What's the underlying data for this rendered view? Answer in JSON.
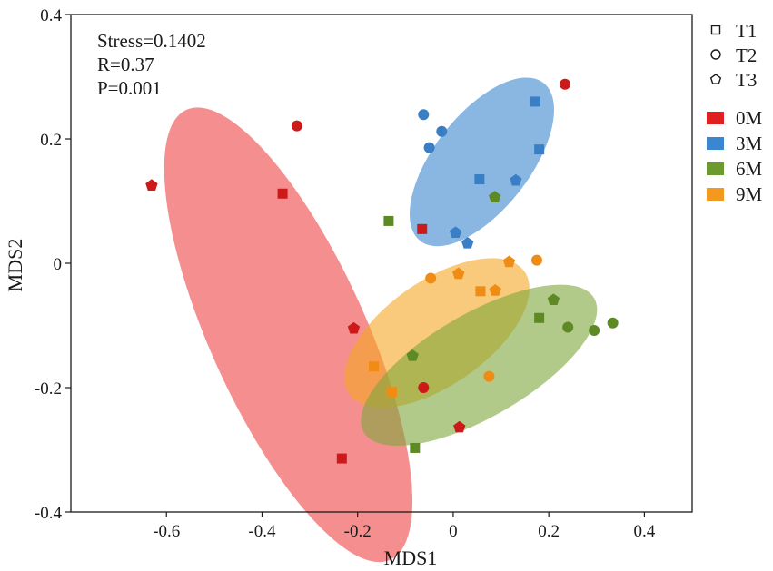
{
  "chart_data": {
    "type": "scatter",
    "title": "",
    "xlabel": "MDS1",
    "ylabel": "MDS2",
    "xlim": [
      -0.8,
      0.5
    ],
    "ylim": [
      -0.4,
      0.4
    ],
    "x_ticks": [
      -0.6,
      -0.4,
      -0.2,
      0,
      0.2,
      0.4
    ],
    "x_tick_labels": [
      "-0.6",
      "-0.4",
      "-0.2",
      "0",
      "0.2",
      "0.4"
    ],
    "y_ticks": [
      0.4,
      0.2,
      0,
      -0.2,
      -0.4
    ],
    "y_tick_labels": [
      "0.4",
      "0.2",
      "0",
      "-0.2",
      "-0.4"
    ],
    "grid": false,
    "annotations": [
      "Stress=0.1402",
      "R=0.37",
      "P=0.001"
    ],
    "legend_position": "right",
    "shape_legend": [
      {
        "label": "T1",
        "shape": "square"
      },
      {
        "label": "T2",
        "shape": "circle"
      },
      {
        "label": "T3",
        "shape": "pentagon"
      }
    ],
    "group_legend": [
      {
        "label": "0M",
        "color": "#e02020"
      },
      {
        "label": "3M",
        "color": "#3a87cf"
      },
      {
        "label": "6M",
        "color": "#6b9a2e"
      },
      {
        "label": "9M",
        "color": "#f39a1e"
      }
    ],
    "ellipses": [
      {
        "group": "0M",
        "fill": "#ef4444",
        "center": [
          -0.345,
          -0.115
        ],
        "semi_major": 0.42,
        "semi_minor": 0.15,
        "angle_deg": -59.5
      },
      {
        "group": "3M",
        "fill": "#3a87cf",
        "center": [
          0.06,
          0.163
        ],
        "semi_major": 0.181,
        "semi_minor": 0.086,
        "angle_deg": 44.6
      },
      {
        "group": "9M",
        "fill": "#f5a623",
        "center": [
          -0.034,
          -0.112
        ],
        "semi_major": 0.208,
        "semi_minor": 0.088,
        "angle_deg": 28.3
      },
      {
        "group": "6M",
        "fill": "#7ea63b",
        "center": [
          0.054,
          -0.164
        ],
        "semi_major": 0.264,
        "semi_minor": 0.086,
        "angle_deg": 24.1
      }
    ],
    "series": [
      {
        "name": "0M",
        "color": "#cc1a1a",
        "points": [
          {
            "x": 0.234,
            "y": 0.288,
            "shape": "circle"
          },
          {
            "x": -0.327,
            "y": 0.221,
            "shape": "circle"
          },
          {
            "x": -0.631,
            "y": 0.126,
            "shape": "pentagon"
          },
          {
            "x": -0.357,
            "y": 0.112,
            "shape": "square"
          },
          {
            "x": -0.065,
            "y": 0.055,
            "shape": "square"
          },
          {
            "x": -0.208,
            "y": -0.104,
            "shape": "pentagon"
          },
          {
            "x": -0.062,
            "y": -0.2,
            "shape": "circle"
          },
          {
            "x": 0.013,
            "y": -0.263,
            "shape": "pentagon"
          },
          {
            "x": -0.233,
            "y": -0.314,
            "shape": "square"
          }
        ]
      },
      {
        "name": "3M",
        "color": "#3a7fc6",
        "points": [
          {
            "x": -0.062,
            "y": 0.239,
            "shape": "circle"
          },
          {
            "x": 0.172,
            "y": 0.26,
            "shape": "square"
          },
          {
            "x": -0.024,
            "y": 0.212,
            "shape": "circle"
          },
          {
            "x": -0.05,
            "y": 0.186,
            "shape": "circle"
          },
          {
            "x": 0.18,
            "y": 0.183,
            "shape": "square"
          },
          {
            "x": 0.055,
            "y": 0.135,
            "shape": "square"
          },
          {
            "x": 0.131,
            "y": 0.134,
            "shape": "pentagon"
          },
          {
            "x": 0.005,
            "y": 0.05,
            "shape": "pentagon"
          },
          {
            "x": 0.03,
            "y": 0.033,
            "shape": "pentagon"
          }
        ]
      },
      {
        "name": "6M",
        "color": "#5d8a25",
        "points": [
          {
            "x": 0.087,
            "y": 0.107,
            "shape": "pentagon"
          },
          {
            "x": -0.135,
            "y": 0.068,
            "shape": "square"
          },
          {
            "x": 0.21,
            "y": -0.058,
            "shape": "pentagon"
          },
          {
            "x": 0.18,
            "y": -0.088,
            "shape": "square"
          },
          {
            "x": 0.24,
            "y": -0.103,
            "shape": "circle"
          },
          {
            "x": 0.295,
            "y": -0.108,
            "shape": "circle"
          },
          {
            "x": 0.334,
            "y": -0.096,
            "shape": "circle"
          },
          {
            "x": -0.085,
            "y": -0.148,
            "shape": "pentagon"
          },
          {
            "x": -0.08,
            "y": -0.297,
            "shape": "square"
          }
        ]
      },
      {
        "name": "9M",
        "color": "#f08c14",
        "points": [
          {
            "x": 0.175,
            "y": 0.005,
            "shape": "circle"
          },
          {
            "x": 0.117,
            "y": 0.003,
            "shape": "pentagon"
          },
          {
            "x": 0.011,
            "y": -0.016,
            "shape": "pentagon"
          },
          {
            "x": -0.047,
            "y": -0.024,
            "shape": "circle"
          },
          {
            "x": 0.057,
            "y": -0.045,
            "shape": "square"
          },
          {
            "x": 0.088,
            "y": -0.043,
            "shape": "pentagon"
          },
          {
            "x": -0.166,
            "y": -0.166,
            "shape": "square"
          },
          {
            "x": -0.128,
            "y": -0.207,
            "shape": "square"
          },
          {
            "x": 0.075,
            "y": -0.182,
            "shape": "circle"
          }
        ]
      }
    ]
  }
}
